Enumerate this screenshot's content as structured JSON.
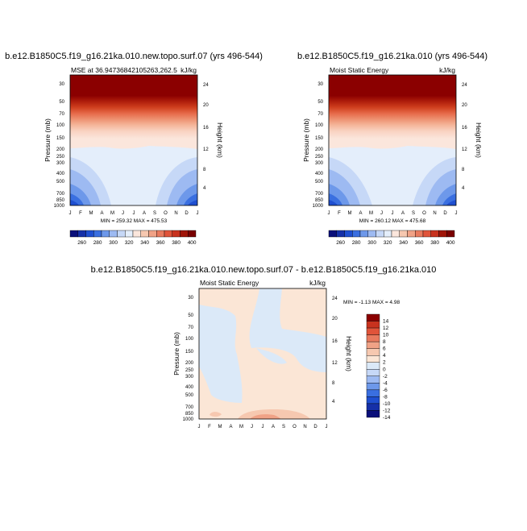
{
  "colors": {
    "mse_scale": [
      "#0a0f7a",
      "#1530a8",
      "#1f4fd0",
      "#3a6fe0",
      "#6d98ea",
      "#9dbaf2",
      "#c6d8f7",
      "#e4eefb",
      "#fbe6dc",
      "#f6c8b0",
      "#f0a286",
      "#e87a5e",
      "#e0543a",
      "#c8321e",
      "#a01408",
      "#7a0000"
    ],
    "diff_scale": [
      "#0a0f7a",
      "#1530a8",
      "#1f4fd0",
      "#3a6fe0",
      "#6d98ea",
      "#9dbaf2",
      "#c6d8f7",
      "#dbe9f8",
      "#fbe6d6",
      "#f6c8b0",
      "#f0a286",
      "#e87a5e",
      "#e0543a",
      "#c8321e",
      "#8b0000"
    ]
  },
  "panels": [
    {
      "title": "b.e12.B1850C5.f19_g16.21ka.010.new.topo.surf.07 (yrs 496-544)",
      "left_label": "MSE at 36.9473684210526​3,262.5",
      "right_label": "kJ/kg",
      "ylabel": "Pressure (mb)",
      "y2label": "Height (km)",
      "minmax": "MIN = 259.32  MAX = 475.53"
    },
    {
      "title": "b.e12.B1850C5.f19_g16.21ka.010 (yrs 496-544)",
      "left_label": "Moist Static Energy",
      "right_label": "kJ/kg",
      "ylabel": "Pressure (mb)",
      "y2label": "Height (km)",
      "minmax": "MIN = 260.12  MAX = 475.68"
    },
    {
      "title": "b.e12.B1850C5.f19_g16.21ka.010.new.topo.surf.07 - b.e12.B1850C5.f19_g16.21ka.010",
      "left_label": "Moist Static Energy",
      "right_label": "kJ/kg",
      "ylabel": "Pressure (mb)",
      "y2label": "Height (km)",
      "minmax": "MIN =   -1.13  MAX =    4.98"
    }
  ],
  "chart_data": [
    {
      "type": "heatmap",
      "title": "b.e12.B1850C5.f19_g16.21ka.010.new.topo.surf.07 (yrs 496-544)",
      "xlabel": "",
      "ylabel": "Pressure (mb)",
      "x_ticks": [
        "J",
        "F",
        "M",
        "A",
        "M",
        "J",
        "J",
        "A",
        "S",
        "O",
        "N",
        "D",
        "J"
      ],
      "y_ticks": [
        "30",
        "50",
        "70",
        "100",
        "150",
        "200",
        "250",
        "300",
        "400",
        "500",
        "700",
        "850",
        "1000"
      ],
      "y2_ticks": [
        "24",
        "20",
        "16",
        "12",
        "8",
        "4"
      ],
      "colorbar_labels": [
        "260",
        "280",
        "300",
        "320",
        "340",
        "360",
        "380",
        "400"
      ],
      "min": 259.32,
      "max": 475.53
    },
    {
      "type": "heatmap",
      "title": "b.e12.B1850C5.f19_g16.21ka.010 (yrs 496-544)",
      "xlabel": "",
      "ylabel": "Pressure (mb)",
      "x_ticks": [
        "J",
        "F",
        "M",
        "A",
        "M",
        "J",
        "J",
        "A",
        "S",
        "O",
        "N",
        "D",
        "J"
      ],
      "y_ticks": [
        "30",
        "50",
        "70",
        "100",
        "150",
        "200",
        "250",
        "300",
        "400",
        "500",
        "700",
        "850",
        "1000"
      ],
      "y2_ticks": [
        "24",
        "20",
        "16",
        "12",
        "8",
        "4"
      ],
      "colorbar_labels": [
        "260",
        "280",
        "300",
        "320",
        "340",
        "360",
        "380",
        "400"
      ],
      "min": 260.12,
      "max": 475.68
    },
    {
      "type": "heatmap",
      "title": "b.e12.B1850C5.f19_g16.21ka.010.new.topo.surf.07 - b.e12.B1850C5.f19_g16.21ka.010",
      "xlabel": "",
      "ylabel": "Pressure (mb)",
      "x_ticks": [
        "J",
        "F",
        "M",
        "A",
        "M",
        "J",
        "J",
        "A",
        "S",
        "O",
        "N",
        "D",
        "J"
      ],
      "y_ticks": [
        "30",
        "50",
        "70",
        "100",
        "150",
        "200",
        "250",
        "300",
        "400",
        "500",
        "700",
        "850",
        "1000"
      ],
      "y2_ticks": [
        "24",
        "20",
        "16",
        "12",
        "8",
        "4"
      ],
      "colorbar_labels": [
        "14",
        "12",
        "10",
        "8",
        "6",
        "4",
        "2",
        "0",
        "-2",
        "-4",
        "-6",
        "-8",
        "-10",
        "-12",
        "-14"
      ],
      "min": -1.13,
      "max": 4.98
    }
  ]
}
